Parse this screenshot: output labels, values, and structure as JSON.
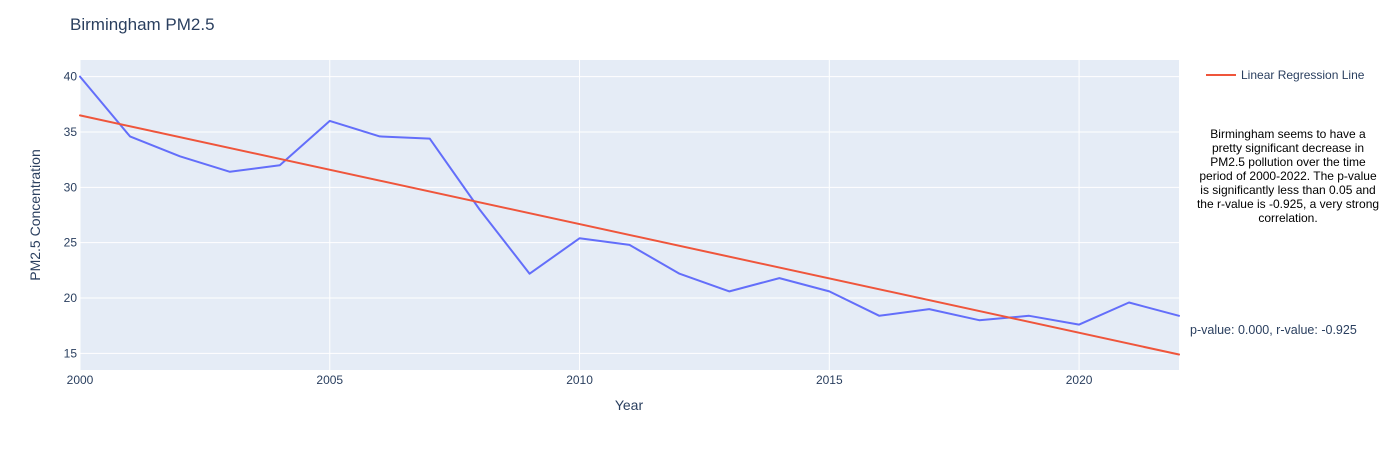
{
  "chart_data": {
    "type": "line",
    "title": "Birmingham PM2.5",
    "xlabel": "Year",
    "ylabel": "PM2.5 Concentration",
    "xlim": [
      2000,
      2022
    ],
    "ylim": [
      13.5,
      41.5
    ],
    "x_ticks": [
      2000,
      2005,
      2010,
      2015,
      2020
    ],
    "y_ticks": [
      15,
      20,
      25,
      30,
      35,
      40
    ],
    "grid": true,
    "legend_position": "top-right",
    "series": [
      {
        "color": "#636efa",
        "x": [
          2000,
          2001,
          2002,
          2003,
          2004,
          2005,
          2006,
          2007,
          2008,
          2009,
          2010,
          2011,
          2012,
          2013,
          2014,
          2015,
          2016,
          2017,
          2018,
          2019,
          2020,
          2021,
          2022
        ],
        "y": [
          40.0,
          34.6,
          32.8,
          31.4,
          32.0,
          36.0,
          34.6,
          34.4,
          28.0,
          22.2,
          25.4,
          24.8,
          22.2,
          20.6,
          21.8,
          20.6,
          18.4,
          19.0,
          18.0,
          18.4,
          17.6,
          19.6,
          18.4
        ]
      },
      {
        "name": "Linear Regression Line",
        "color": "#ef553b",
        "x": [
          2000,
          2022
        ],
        "y": [
          36.5,
          14.9
        ]
      }
    ],
    "annotations": {
      "stats": "p-value: 0.000, r-value: -0.925",
      "note": "Birmingham seems to have a pretty significant decrease in PM2.5 pollution over the time period of 2000-2022. The p-value is significantly less than 0.05 and the r-value is -0.925, a very strong correlation."
    },
    "colors": {
      "plot_bg": "#e5ecf6",
      "grid": "#ffffff",
      "text": "#2a3f5f"
    }
  }
}
